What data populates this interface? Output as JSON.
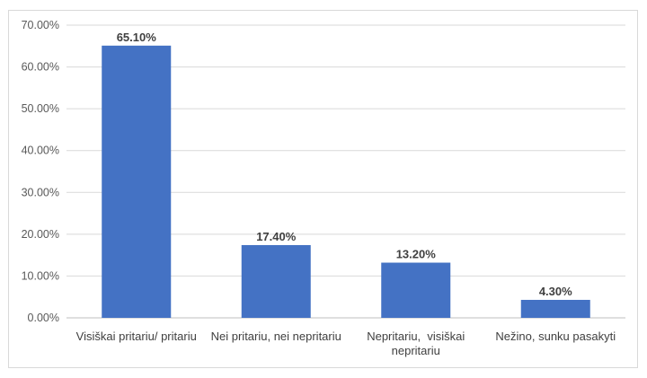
{
  "chart_data": {
    "type": "bar",
    "categories": [
      [
        "Visiškai pritariu/ pritariu"
      ],
      [
        "Nei pritariu, nei nepritariu"
      ],
      [
        "Nepritariu,  visiškai",
        "nepritariu"
      ],
      [
        "Nežino, sunku pasakyti"
      ]
    ],
    "values": [
      65.1,
      17.4,
      13.2,
      4.3
    ],
    "data_labels": [
      "65.10%",
      "17.40%",
      "13.20%",
      "4.30%"
    ],
    "y_ticks": [
      "0.00%",
      "10.00%",
      "20.00%",
      "30.00%",
      "40.00%",
      "50.00%",
      "60.00%",
      "70.00%"
    ],
    "ylim": [
      0,
      70
    ],
    "grid": true,
    "colors": {
      "bar": "#4472C4",
      "grid": "#d9d9d9",
      "axis": "#bfbfbf"
    }
  }
}
